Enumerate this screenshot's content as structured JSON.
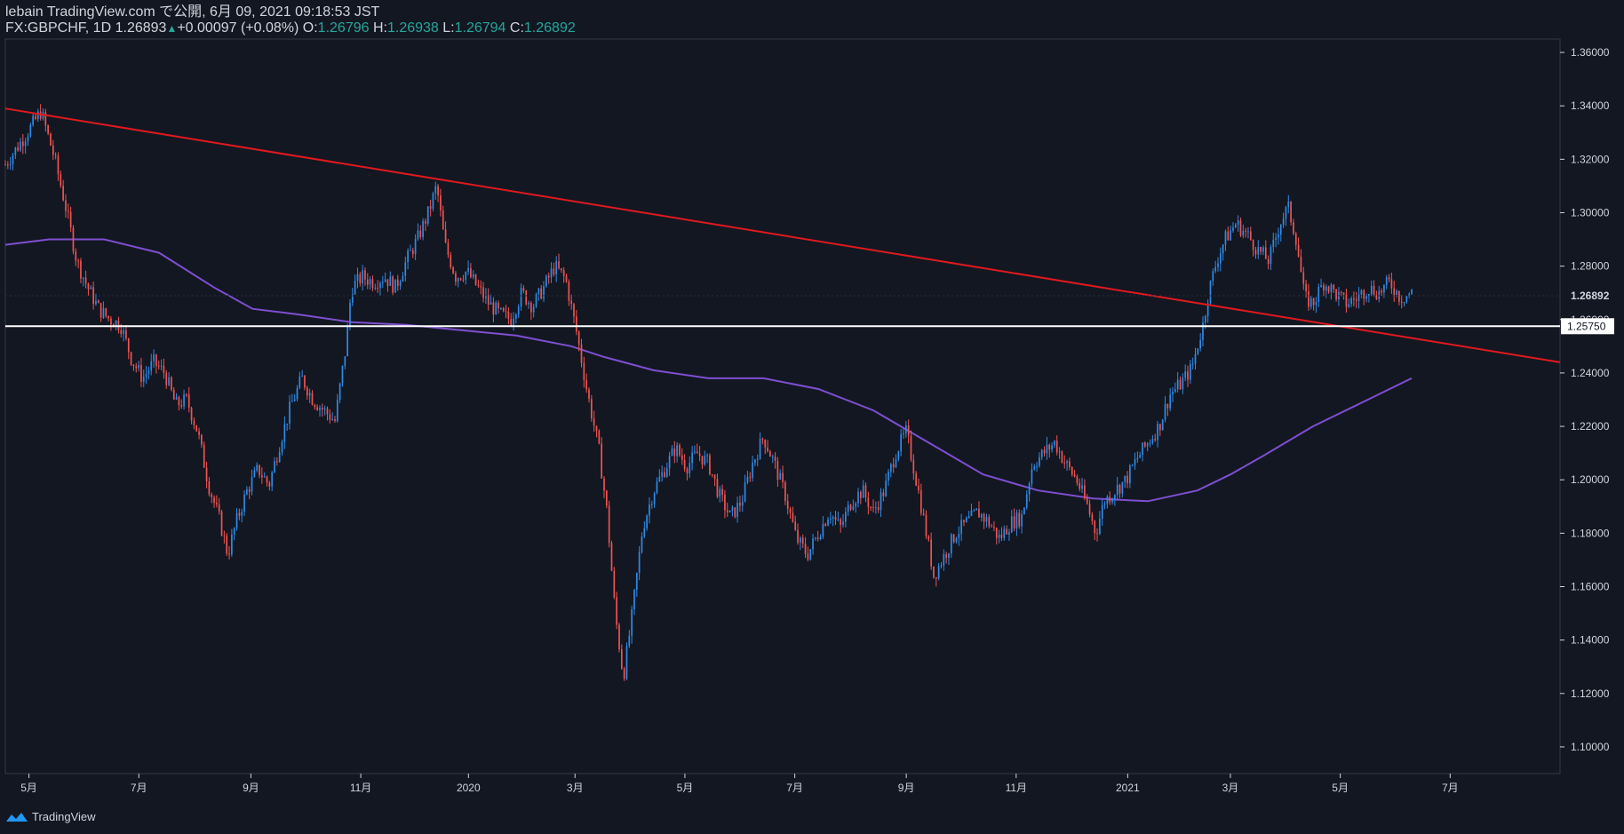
{
  "header": {
    "publish_line": "lebain TradingView.com で公開, 6月 09, 2021 09:18:53 JST",
    "symbol": "FX:GBPCHF, 1D",
    "last": "1.26893",
    "change": "+0.00097 (+0.08%)",
    "o_label": "O:",
    "o": "1.26796",
    "h_label": "H:",
    "h": "1.26938",
    "l_label": "L:",
    "l": "1.26794",
    "c_label": "C:",
    "c": "1.26892"
  },
  "footer": {
    "brand": "TradingView"
  },
  "colors": {
    "background": "#131722",
    "up": "#2f8ae6",
    "down": "#ef5350",
    "trendline": "#e0191e",
    "ma": "#7e4fd0",
    "hline": "#ffffff",
    "price_label_bg": "#ffffff",
    "price_label_text": "#131722",
    "header_value": "#26a69a"
  },
  "chart_data": {
    "type": "candlestick",
    "symbol": "FX:GBPCHF",
    "interval": "1D",
    "ylim": [
      1.09,
      1.365
    ],
    "y_ticks": [
      "1.36000",
      "1.34000",
      "1.32000",
      "1.30000",
      "1.28000",
      "1.26000",
      "1.24000",
      "1.22000",
      "1.20000",
      "1.18000",
      "1.16000",
      "1.14000",
      "1.12000",
      "1.10000"
    ],
    "x_ticks": [
      {
        "label": "5月",
        "x": 0.13
      },
      {
        "label": "7月",
        "x": 2.13
      },
      {
        "label": "9月",
        "x": 4.17
      },
      {
        "label": "11月",
        "x": 6.17
      },
      {
        "label": "2020",
        "x": 8.13
      },
      {
        "label": "3月",
        "x": 10.07
      },
      {
        "label": "5月",
        "x": 12.07
      },
      {
        "label": "7月",
        "x": 14.07
      },
      {
        "label": "9月",
        "x": 16.1
      },
      {
        "label": "11月",
        "x": 18.1
      },
      {
        "label": "2021",
        "x": 20.13
      },
      {
        "label": "3月",
        "x": 22.0
      },
      {
        "label": "5月",
        "x": 24.0
      },
      {
        "label": "7月",
        "x": 26.0
      }
    ],
    "x_range": [
      -0.3,
      28.0
    ],
    "close_path": [
      [
        -0.3,
        1.318
      ],
      [
        0.1,
        1.33
      ],
      [
        0.35,
        1.338
      ],
      [
        0.6,
        1.32
      ],
      [
        0.8,
        1.302
      ],
      [
        1.0,
        1.282
      ],
      [
        1.2,
        1.272
      ],
      [
        1.4,
        1.264
      ],
      [
        1.6,
        1.26
      ],
      [
        1.8,
        1.258
      ],
      [
        2.0,
        1.245
      ],
      [
        2.2,
        1.238
      ],
      [
        2.4,
        1.244
      ],
      [
        2.6,
        1.24
      ],
      [
        2.8,
        1.228
      ],
      [
        3.0,
        1.23
      ],
      [
        3.2,
        1.218
      ],
      [
        3.4,
        1.198
      ],
      [
        3.6,
        1.185
      ],
      [
        3.75,
        1.172
      ],
      [
        3.9,
        1.184
      ],
      [
        4.1,
        1.196
      ],
      [
        4.3,
        1.204
      ],
      [
        4.5,
        1.198
      ],
      [
        4.7,
        1.214
      ],
      [
        4.9,
        1.228
      ],
      [
        5.1,
        1.238
      ],
      [
        5.3,
        1.23
      ],
      [
        5.5,
        1.226
      ],
      [
        5.7,
        1.222
      ],
      [
        5.9,
        1.25
      ],
      [
        6.0,
        1.272
      ],
      [
        6.2,
        1.276
      ],
      [
        6.4,
        1.274
      ],
      [
        6.6,
        1.276
      ],
      [
        6.8,
        1.272
      ],
      [
        7.0,
        1.282
      ],
      [
        7.2,
        1.29
      ],
      [
        7.4,
        1.3
      ],
      [
        7.55,
        1.31
      ],
      [
        7.7,
        1.288
      ],
      [
        7.9,
        1.276
      ],
      [
        8.1,
        1.278
      ],
      [
        8.3,
        1.272
      ],
      [
        8.5,
        1.266
      ],
      [
        8.7,
        1.262
      ],
      [
        8.9,
        1.26
      ],
      [
        9.1,
        1.27
      ],
      [
        9.3,
        1.265
      ],
      [
        9.5,
        1.272
      ],
      [
        9.7,
        1.28
      ],
      [
        9.9,
        1.275
      ],
      [
        10.1,
        1.255
      ],
      [
        10.3,
        1.232
      ],
      [
        10.5,
        1.212
      ],
      [
        10.65,
        1.188
      ],
      [
        10.8,
        1.15
      ],
      [
        10.95,
        1.126
      ],
      [
        11.1,
        1.148
      ],
      [
        11.3,
        1.182
      ],
      [
        11.5,
        1.196
      ],
      [
        11.7,
        1.204
      ],
      [
        11.9,
        1.212
      ],
      [
        12.1,
        1.205
      ],
      [
        12.3,
        1.21
      ],
      [
        12.5,
        1.206
      ],
      [
        12.7,
        1.194
      ],
      [
        12.9,
        1.186
      ],
      [
        13.1,
        1.192
      ],
      [
        13.3,
        1.206
      ],
      [
        13.5,
        1.216
      ],
      [
        13.7,
        1.206
      ],
      [
        13.9,
        1.194
      ],
      [
        14.1,
        1.178
      ],
      [
        14.3,
        1.172
      ],
      [
        14.5,
        1.18
      ],
      [
        14.7,
        1.188
      ],
      [
        14.9,
        1.182
      ],
      [
        15.1,
        1.192
      ],
      [
        15.3,
        1.196
      ],
      [
        15.5,
        1.188
      ],
      [
        15.7,
        1.196
      ],
      [
        15.9,
        1.21
      ],
      [
        16.1,
        1.218
      ],
      [
        16.3,
        1.198
      ],
      [
        16.5,
        1.176
      ],
      [
        16.6,
        1.164
      ],
      [
        16.8,
        1.172
      ],
      [
        17.0,
        1.18
      ],
      [
        17.2,
        1.184
      ],
      [
        17.4,
        1.188
      ],
      [
        17.6,
        1.184
      ],
      [
        17.8,
        1.178
      ],
      [
        18.0,
        1.184
      ],
      [
        18.2,
        1.186
      ],
      [
        18.4,
        1.206
      ],
      [
        18.6,
        1.21
      ],
      [
        18.8,
        1.214
      ],
      [
        19.0,
        1.206
      ],
      [
        19.2,
        1.2
      ],
      [
        19.4,
        1.19
      ],
      [
        19.55,
        1.18
      ],
      [
        19.7,
        1.192
      ],
      [
        19.9,
        1.196
      ],
      [
        20.1,
        1.2
      ],
      [
        20.3,
        1.208
      ],
      [
        20.5,
        1.214
      ],
      [
        20.7,
        1.22
      ],
      [
        20.9,
        1.232
      ],
      [
        21.1,
        1.236
      ],
      [
        21.3,
        1.242
      ],
      [
        21.5,
        1.258
      ],
      [
        21.6,
        1.27
      ],
      [
        21.75,
        1.282
      ],
      [
        21.9,
        1.29
      ],
      [
        22.1,
        1.296
      ],
      [
        22.3,
        1.292
      ],
      [
        22.5,
        1.286
      ],
      [
        22.7,
        1.282
      ],
      [
        22.9,
        1.296
      ],
      [
        23.05,
        1.302
      ],
      [
        23.2,
        1.29
      ],
      [
        23.35,
        1.268
      ],
      [
        23.5,
        1.266
      ],
      [
        23.7,
        1.274
      ],
      [
        23.9,
        1.27
      ],
      [
        24.1,
        1.266
      ],
      [
        24.3,
        1.268
      ],
      [
        24.5,
        1.272
      ],
      [
        24.7,
        1.27
      ],
      [
        24.9,
        1.274
      ],
      [
        25.1,
        1.268
      ],
      [
        25.3,
        1.27
      ]
    ],
    "ma_path": [
      [
        -0.3,
        1.288
      ],
      [
        0.5,
        1.29
      ],
      [
        1.5,
        1.29
      ],
      [
        2.5,
        1.285
      ],
      [
        3.5,
        1.272
      ],
      [
        4.2,
        1.264
      ],
      [
        5.0,
        1.262
      ],
      [
        6.0,
        1.259
      ],
      [
        7.0,
        1.258
      ],
      [
        8.0,
        1.256
      ],
      [
        9.0,
        1.254
      ],
      [
        10.0,
        1.25
      ],
      [
        10.6,
        1.246
      ],
      [
        11.5,
        1.241
      ],
      [
        12.5,
        1.238
      ],
      [
        13.5,
        1.238
      ],
      [
        14.5,
        1.234
      ],
      [
        15.5,
        1.226
      ],
      [
        16.5,
        1.214
      ],
      [
        17.5,
        1.202
      ],
      [
        18.5,
        1.196
      ],
      [
        19.5,
        1.193
      ],
      [
        20.5,
        1.192
      ],
      [
        21.4,
        1.196
      ],
      [
        22.0,
        1.202
      ],
      [
        22.6,
        1.209
      ],
      [
        23.5,
        1.22
      ],
      [
        24.5,
        1.23
      ],
      [
        25.3,
        1.238
      ]
    ],
    "trendline": {
      "x1": -0.3,
      "y1": 1.339,
      "x2": 28.0,
      "y2": 1.244
    },
    "hline": {
      "value": 1.2575,
      "label": "1.25750"
    },
    "last_price": {
      "value": 1.26892,
      "label": "1.26892"
    }
  }
}
